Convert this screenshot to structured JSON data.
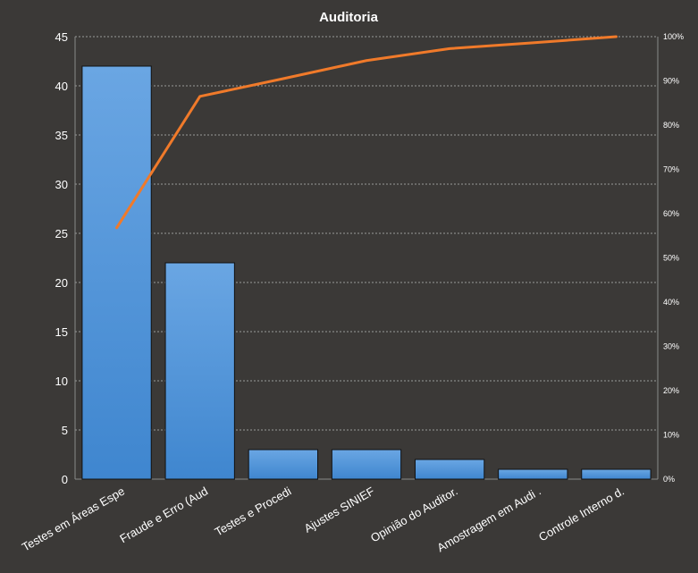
{
  "chart_data": {
    "type": "bar",
    "title": "Auditoria",
    "xlabel": "",
    "ylabel": "",
    "categories": [
      "Testes em Áreas Espe",
      "Fraude e Erro (Aud",
      "Testes e Procedi",
      "Ajustes SINIEF",
      "Opinião do Auditor.",
      "Amostragem em Audi .",
      "Controle Interno d."
    ],
    "series": [
      {
        "type": "bar",
        "values": [
          42,
          22,
          3,
          3,
          2,
          1,
          1
        ]
      },
      {
        "type": "line",
        "axis": "right",
        "values": [
          56.8,
          86.5,
          90.5,
          94.6,
          97.3,
          98.6,
          100
        ]
      }
    ],
    "ylim": [
      0,
      45
    ],
    "yticks": [
      0,
      5,
      10,
      15,
      20,
      25,
      30,
      35,
      40,
      45
    ],
    "y2lim": [
      0,
      100
    ],
    "y2ticks": [
      "0%",
      "10%",
      "20%",
      "30%",
      "40%",
      "50%",
      "60%",
      "70%",
      "80%",
      "90%",
      "100%"
    ],
    "grid": true,
    "legend": "none",
    "colors": {
      "background": "#3b3937",
      "bar_top": "#6aa6e3",
      "bar_bottom": "#3f86cf",
      "line": "#f07a2a",
      "text": "#ffffff",
      "grid": "#9a9a9a"
    }
  }
}
